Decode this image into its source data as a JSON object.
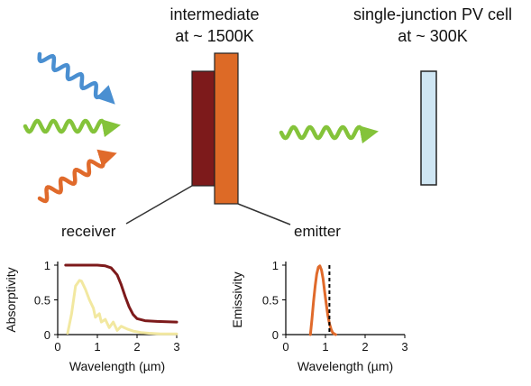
{
  "colors": {
    "blue": "#4a8fd1",
    "green": "#84c33a",
    "orange": "#e06a2b",
    "receiver": "#7d1a1b",
    "emitter": "#dd6a26",
    "pv_cell": "#cfe6f3",
    "absorptivity_curve": "#7d1a1b",
    "solar_spectrum": "#f2e8a0",
    "emissivity_curve": "#e06a2b"
  },
  "labels": {
    "intermediate_line1": "intermediate",
    "intermediate_line2": "at ~ 1500K",
    "pv_line1": "single-junction PV cell",
    "pv_line2": "at ~ 300K",
    "receiver": "receiver",
    "emitter": "emitter"
  },
  "chart_data": [
    {
      "type": "line",
      "xlabel": "Wavelength (µm)",
      "ylabel": "Absorptivity",
      "xlim": [
        0,
        3
      ],
      "ylim": [
        0,
        1
      ],
      "xticks": [
        "0",
        "1",
        "2",
        "3"
      ],
      "yticks": [
        "0",
        "0.5",
        "1"
      ],
      "series": [
        {
          "x": [
            0.2,
            0.5,
            0.8,
            1.0,
            1.2,
            1.35,
            1.5,
            1.6,
            1.7,
            1.8,
            1.9,
            2.0,
            2.2,
            2.5,
            3.0
          ],
          "y": [
            1.0,
            1.0,
            1.0,
            1.0,
            0.99,
            0.96,
            0.86,
            0.72,
            0.55,
            0.4,
            0.29,
            0.23,
            0.2,
            0.19,
            0.18
          ]
        },
        {
          "x": [
            0.25,
            0.35,
            0.45,
            0.55,
            0.6,
            0.7,
            0.8,
            0.9,
            0.95,
            1.05,
            1.1,
            1.2,
            1.3,
            1.4,
            1.5,
            1.6,
            1.75,
            1.9,
            2.1,
            2.3,
            2.6,
            3.0
          ],
          "y": [
            0.02,
            0.3,
            0.7,
            0.78,
            0.77,
            0.65,
            0.5,
            0.38,
            0.25,
            0.3,
            0.18,
            0.22,
            0.1,
            0.18,
            0.06,
            0.12,
            0.08,
            0.05,
            0.03,
            0.02,
            0.01,
            0.01
          ]
        }
      ]
    },
    {
      "type": "line",
      "xlabel": "Wavelength (µm)",
      "ylabel": "Emissivity",
      "xlim": [
        0,
        3
      ],
      "ylim": [
        0,
        1
      ],
      "xticks": [
        "0",
        "1",
        "2",
        "3"
      ],
      "yticks": [
        "0",
        "0.5",
        "1"
      ],
      "series": [
        {
          "x": [
            0.62,
            0.66,
            0.7,
            0.74,
            0.78,
            0.82,
            0.86,
            0.9,
            0.94,
            0.98,
            1.02,
            1.06,
            1.1,
            1.14,
            1.18,
            1.22,
            1.26
          ],
          "y": [
            0.0,
            0.22,
            0.48,
            0.7,
            0.87,
            0.97,
            0.99,
            0.93,
            0.8,
            0.62,
            0.44,
            0.28,
            0.16,
            0.08,
            0.03,
            0.01,
            0.0
          ]
        }
      ],
      "bandgap_x": 1.1
    }
  ]
}
